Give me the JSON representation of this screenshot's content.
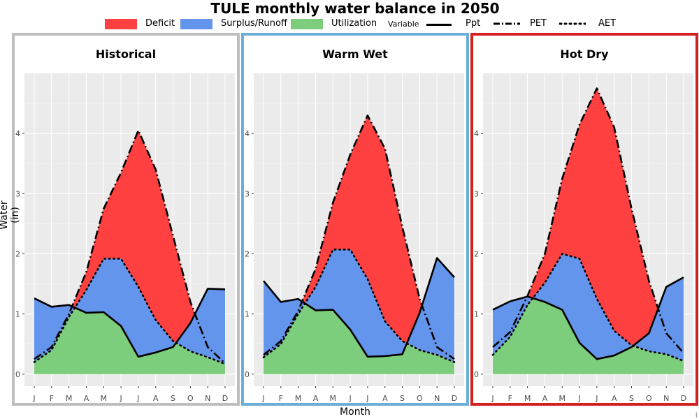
{
  "title": "TULE monthly water balance in 2050",
  "legend": {
    "fills": [
      {
        "label": "Deficit",
        "color": "#FF4040"
      },
      {
        "label": "Surplus/Runoff",
        "color": "#6495ED"
      },
      {
        "label": "Utilization",
        "color": "#7CCD7C"
      }
    ],
    "variable_title": "Variable",
    "lines": [
      {
        "label": "Ppt",
        "dash": "solid"
      },
      {
        "label": "PET",
        "dash": "dashdot"
      },
      {
        "label": "AET",
        "dash": "dotted"
      }
    ]
  },
  "colors": {
    "panel_bg": "#EBEBEB",
    "grid": "#FFFFFF",
    "line": "#000000"
  },
  "chart_data": {
    "type": "area",
    "x": [
      "J",
      "F",
      "M",
      "A",
      "M",
      "J",
      "J",
      "A",
      "S",
      "O",
      "N",
      "D"
    ],
    "xlabel": "Month",
    "ylabel": "Water (in)",
    "ylim": [
      -0.2,
      5.0
    ],
    "yticks": [
      0,
      1,
      2,
      3,
      4
    ],
    "grid": true,
    "legend_position": "top",
    "panels": [
      {
        "title": "Historical",
        "border_color": "#BEBEBE",
        "series": [
          {
            "name": "Ppt",
            "values": [
              1.26,
              1.12,
              1.15,
              1.02,
              1.03,
              0.8,
              0.29,
              0.36,
              0.45,
              0.85,
              1.42,
              1.41
            ]
          },
          {
            "name": "PET",
            "values": [
              0.25,
              0.45,
              1.0,
              1.7,
              2.75,
              3.35,
              4.05,
              3.4,
              2.3,
              1.2,
              0.45,
              0.18
            ]
          },
          {
            "name": "AET",
            "values": [
              0.2,
              0.4,
              0.95,
              1.4,
              1.92,
              1.92,
              1.45,
              0.9,
              0.55,
              0.38,
              0.28,
              0.17
            ]
          }
        ]
      },
      {
        "title": "Warm Wet",
        "border_color": "#6BAED6",
        "series": [
          {
            "name": "Ppt",
            "values": [
              1.55,
              1.2,
              1.25,
              1.06,
              1.07,
              0.74,
              0.29,
              0.3,
              0.33,
              1.02,
              1.93,
              1.61
            ]
          },
          {
            "name": "PET",
            "values": [
              0.32,
              0.55,
              1.05,
              1.75,
              2.85,
              3.65,
              4.3,
              3.75,
              2.45,
              1.25,
              0.45,
              0.25
            ]
          },
          {
            "name": "AET",
            "values": [
              0.28,
              0.5,
              1.0,
              1.45,
              2.07,
              2.07,
              1.58,
              0.88,
              0.55,
              0.4,
              0.32,
              0.2
            ]
          }
        ]
      },
      {
        "title": "Hot Dry",
        "border_color": "#D42020",
        "series": [
          {
            "name": "Ppt",
            "values": [
              1.07,
              1.21,
              1.29,
              1.2,
              1.07,
              0.52,
              0.25,
              0.31,
              0.45,
              0.68,
              1.45,
              1.61
            ]
          },
          {
            "name": "PET",
            "values": [
              0.45,
              0.7,
              1.3,
              2.0,
              3.25,
              4.15,
              4.75,
              4.1,
              2.75,
              1.55,
              0.68,
              0.35
            ]
          },
          {
            "name": "AET",
            "values": [
              0.32,
              0.62,
              1.15,
              1.52,
              2.0,
              1.92,
              1.25,
              0.72,
              0.48,
              0.38,
              0.33,
              0.22
            ]
          }
        ]
      }
    ]
  }
}
